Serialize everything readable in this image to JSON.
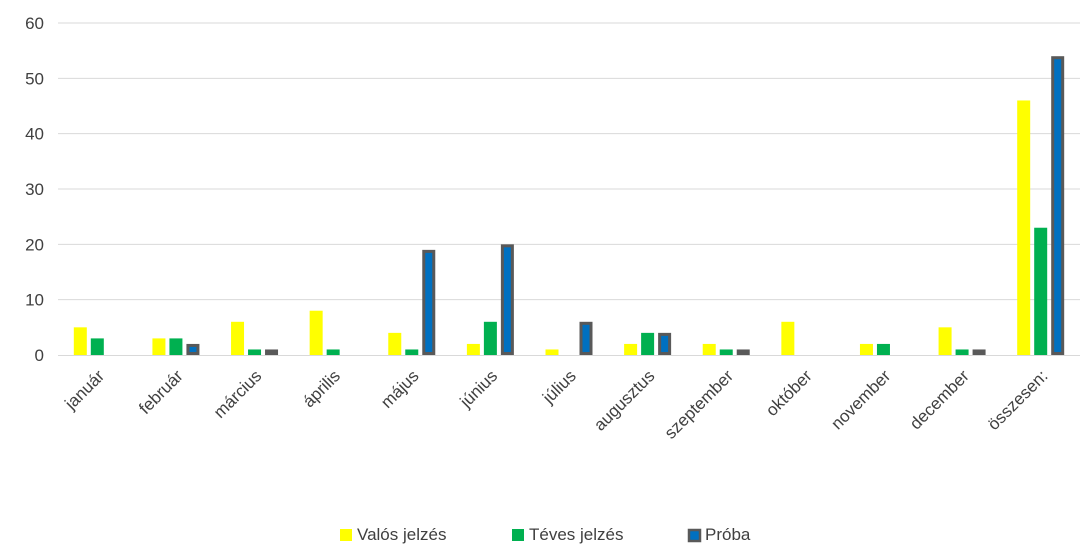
{
  "chart_data": {
    "type": "bar",
    "title": "",
    "xlabel": "",
    "ylabel": "",
    "ylim": [
      0,
      60
    ],
    "yticks": [
      0,
      10,
      20,
      30,
      40,
      50,
      60
    ],
    "grid": true,
    "legend_position": "bottom",
    "categories": [
      "január",
      "február",
      "március",
      "április",
      "május",
      "június",
      "július",
      "augusztus",
      "szeptember",
      "október",
      "november",
      "december",
      "összesen:"
    ],
    "series": [
      {
        "name": "Valós jelzés",
        "color": "#FFFF00",
        "values": [
          5,
          3,
          6,
          8,
          4,
          2,
          1,
          2,
          2,
          6,
          2,
          5,
          46
        ]
      },
      {
        "name": "Téves jelzés",
        "color": "#00B050",
        "values": [
          3,
          3,
          1,
          1,
          1,
          6,
          0,
          4,
          1,
          0,
          2,
          1,
          23
        ]
      },
      {
        "name": "Próba",
        "color": "#0070C0",
        "border_color": "#595959",
        "values": [
          0,
          2,
          1,
          0,
          19,
          20,
          6,
          4,
          1,
          0,
          0,
          1,
          54
        ]
      }
    ]
  }
}
